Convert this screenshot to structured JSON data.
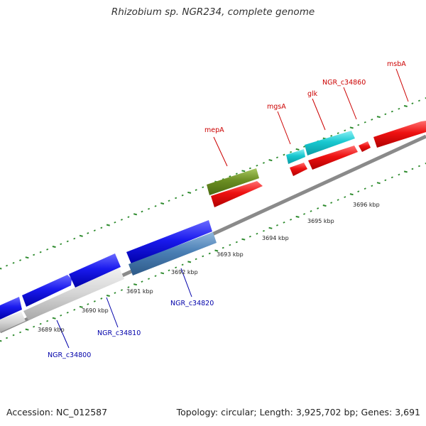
{
  "header": {
    "title": "Rhizobium sp. NGR234, complete genome"
  },
  "footer": {
    "accession": "Accession: NC_012587",
    "stats": "Topology: circular; Length: 3,925,702 bp; Genes: 3,691"
  },
  "colors": {
    "backbone": "#8a8a8a",
    "tick": "#2e8b2e",
    "red_gene": "#ee1111",
    "blue_gene": "#1a1aee",
    "gray_gene": "#cfcfcf",
    "cyan_gene": "#18c8d0",
    "olive_gene": "#6b8e23",
    "steel_gene": "#4a7fb5",
    "red_label": "#cc0000",
    "blue_label": "#0000aa"
  },
  "scale": {
    "kbp_labels": [
      "3689 kbp",
      "3690 kbp",
      "3691 kbp",
      "3692 kbp",
      "3693 kbp",
      "3694 kbp",
      "3695 kbp",
      "3696 kbp"
    ]
  },
  "gene_labels": {
    "top": [
      "mepA",
      "mgsA",
      "glk",
      "NGR_c34860",
      "msbA"
    ],
    "bottom": [
      "NGR_c34800",
      "NGR_c34810",
      "NGR_c34820"
    ]
  }
}
